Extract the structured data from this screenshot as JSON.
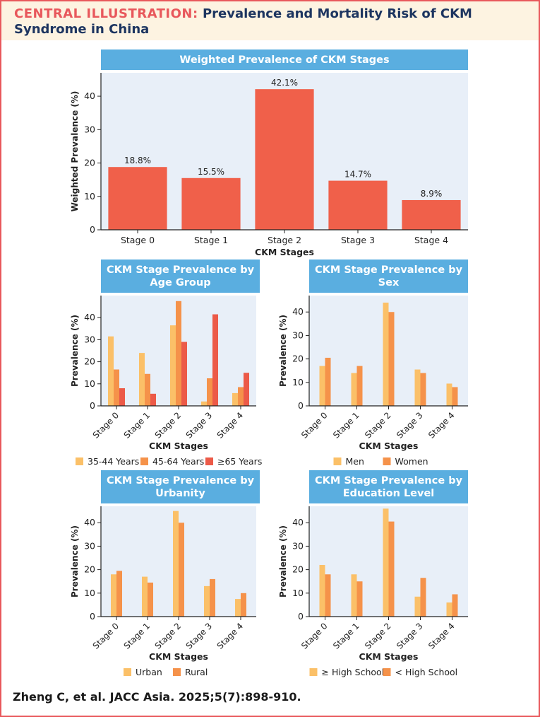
{
  "header": {
    "lead": "CENTRAL ILLUSTRATION:",
    "title": "Prevalence and Mortality Risk of CKM Syndrome in China"
  },
  "citation": "Zheng C, et al. JACC Asia. 2025;5(7):898-910.",
  "colors": {
    "header_bg": "#fdf3e1",
    "lead_red": "#e8585c",
    "title_navy": "#1d3560",
    "panel_title_bg": "#5aaee0",
    "plot_bg": "#e8eff8",
    "bar_main": "#f0604a",
    "light_orange": "#fbc068",
    "mid_orange": "#f5924a",
    "red": "#ec5a48"
  },
  "chart_data": [
    {
      "id": "overall",
      "type": "bar",
      "panel_title": [
        "Weighted Prevalence of CKM Stages"
      ],
      "categories": [
        "Stage 0",
        "Stage 1",
        "Stage 2",
        "Stage 3",
        "Stage 4"
      ],
      "series": [
        {
          "name": "Weighted prevalence",
          "values": [
            18.8,
            15.5,
            42.1,
            14.7,
            8.9
          ],
          "color": "#f0604a"
        }
      ],
      "data_labels": [
        "18.8%",
        "15.5%",
        "42.1%",
        "14.7%",
        "8.9%"
      ],
      "xlabel": "CKM Stages",
      "ylabel": "Weighted Prevalence (%)",
      "ylim": [
        0,
        47
      ],
      "yticks": [
        0,
        10,
        20,
        30,
        40
      ],
      "rotate_ticks": false,
      "legend": null
    },
    {
      "id": "age",
      "type": "bar",
      "panel_title": [
        "CKM Stage Prevalence by",
        "Age Group"
      ],
      "categories": [
        "Stage 0",
        "Stage 1",
        "Stage 2",
        "Stage 3",
        "Stage 4"
      ],
      "series": [
        {
          "name": "35-44 Years",
          "values": [
            31.5,
            24.0,
            36.5,
            2.0,
            5.8
          ],
          "color": "#fbc068"
        },
        {
          "name": "45-64 Years",
          "values": [
            16.5,
            14.5,
            47.5,
            12.5,
            8.5
          ],
          "color": "#f5924a"
        },
        {
          "name": "≥65 Years",
          "values": [
            8.0,
            5.5,
            29.0,
            41.5,
            15.0
          ],
          "color": "#ec5a48"
        }
      ],
      "xlabel": "CKM Stages",
      "ylabel": "Prevalence (%)",
      "ylim": [
        0,
        50
      ],
      "yticks": [
        0,
        10,
        20,
        30,
        40
      ],
      "rotate_ticks": true,
      "legend": "bottom"
    },
    {
      "id": "sex",
      "type": "bar",
      "panel_title": [
        "CKM Stage Prevalence by",
        "Sex"
      ],
      "categories": [
        "Stage 0",
        "Stage 1",
        "Stage 2",
        "Stage 3",
        "Stage 4"
      ],
      "series": [
        {
          "name": "Men",
          "values": [
            17.0,
            14.0,
            44.0,
            15.5,
            9.5
          ],
          "color": "#fbc068"
        },
        {
          "name": "Women",
          "values": [
            20.5,
            17.0,
            40.0,
            14.0,
            8.0
          ],
          "color": "#f5924a"
        }
      ],
      "xlabel": "CKM Stages",
      "ylabel": "Prevalence (%)",
      "ylim": [
        0,
        47
      ],
      "yticks": [
        0,
        10,
        20,
        30,
        40
      ],
      "rotate_ticks": true,
      "legend": "bottom"
    },
    {
      "id": "urbanity",
      "type": "bar",
      "panel_title": [
        "CKM Stage Prevalence by",
        "Urbanity"
      ],
      "categories": [
        "Stage 0",
        "Stage 1",
        "Stage 2",
        "Stage 3",
        "Stage 4"
      ],
      "series": [
        {
          "name": "Urban",
          "values": [
            18.0,
            17.0,
            45.0,
            13.0,
            7.5
          ],
          "color": "#fbc068"
        },
        {
          "name": "Rural",
          "values": [
            19.5,
            14.5,
            40.0,
            16.0,
            10.0
          ],
          "color": "#f5924a"
        }
      ],
      "xlabel": "CKM Stages",
      "ylabel": "Prevalence (%)",
      "ylim": [
        0,
        47
      ],
      "yticks": [
        0,
        10,
        20,
        30,
        40
      ],
      "rotate_ticks": true,
      "legend": "bottom"
    },
    {
      "id": "education",
      "type": "bar",
      "panel_title": [
        "CKM Stage Prevalence by",
        "Education Level"
      ],
      "categories": [
        "Stage 0",
        "Stage 1",
        "Stage 2",
        "Stage 3",
        "Stage 4"
      ],
      "series": [
        {
          "name": "≥ High School",
          "values": [
            22.0,
            18.0,
            46.0,
            8.5,
            6.0
          ],
          "color": "#fbc068"
        },
        {
          "name": "< High School",
          "values": [
            18.0,
            15.0,
            40.5,
            16.5,
            9.5
          ],
          "color": "#f5924a"
        }
      ],
      "xlabel": "CKM Stages",
      "ylabel": "Prevalence (%)",
      "ylim": [
        0,
        47
      ],
      "yticks": [
        0,
        10,
        20,
        30,
        40
      ],
      "rotate_ticks": true,
      "legend": "bottom"
    }
  ]
}
